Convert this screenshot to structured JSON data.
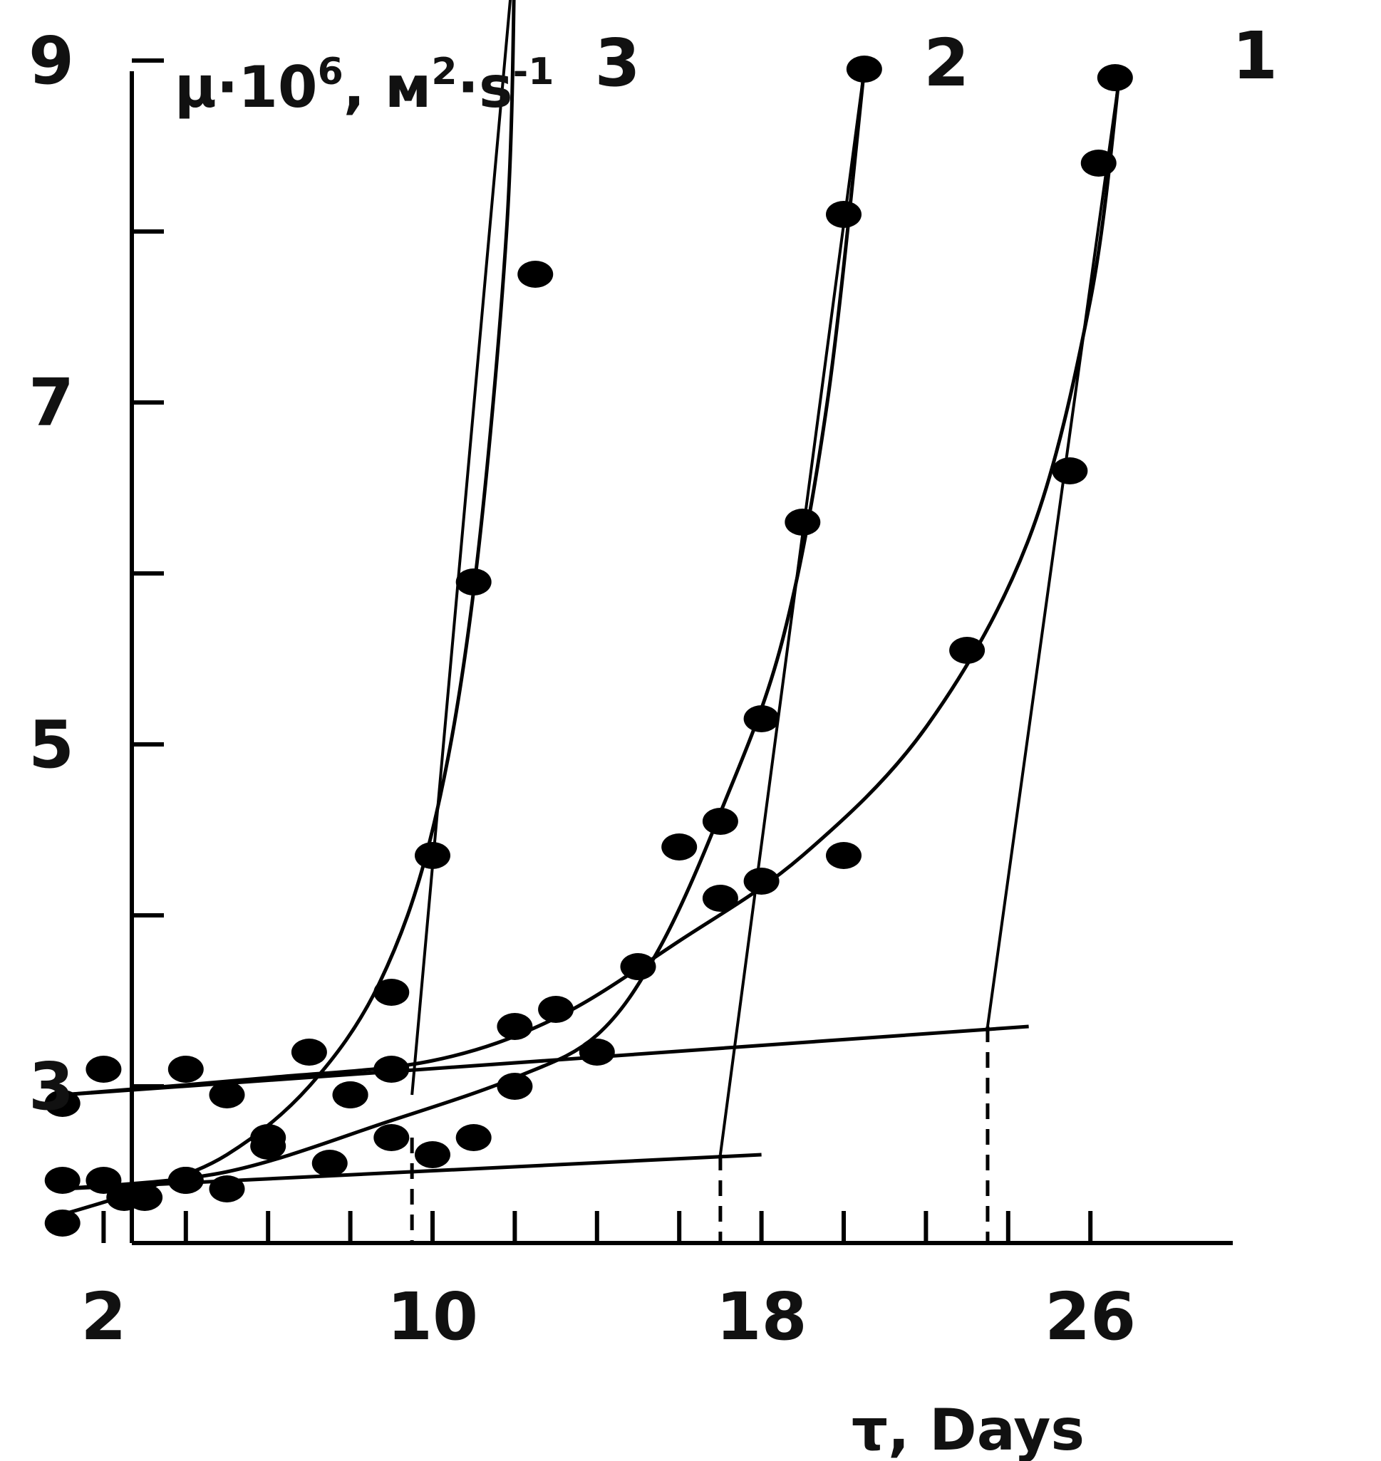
{
  "chart_data": {
    "type": "line",
    "ylabel": {
      "base": "μ·10",
      "exp1": "6",
      "mid": ", м",
      "exp2": "2",
      "unit": "·s",
      "exp3": "-1"
    },
    "xlabel": "τ, Days",
    "xlim": [
      0,
      27
    ],
    "ylim": [
      1.9,
      9.2
    ],
    "x_ticks": [
      2,
      4,
      6,
      8,
      10,
      12,
      14,
      16,
      18,
      20,
      22,
      24,
      26
    ],
    "x_tick_labels": [
      {
        "x": 2,
        "label": "2"
      },
      {
        "x": 10,
        "label": "10"
      },
      {
        "x": 18,
        "label": "18"
      },
      {
        "x": 26,
        "label": "26"
      }
    ],
    "y_ticks": [
      3,
      4,
      5,
      6,
      7,
      8,
      9
    ],
    "y_tick_labels": [
      {
        "y": 3,
        "label": "3"
      },
      {
        "y": 5,
        "label": "5"
      },
      {
        "y": 7,
        "label": "7"
      },
      {
        "y": 9,
        "label": "9"
      }
    ],
    "grid": false,
    "series": [
      {
        "name": "1",
        "points": [
          [
            1,
            2.9
          ],
          [
            2,
            3.1
          ],
          [
            4,
            3.1
          ],
          [
            5,
            2.95
          ],
          [
            7,
            3.2
          ],
          [
            8,
            2.95
          ],
          [
            9,
            3.1
          ],
          [
            12,
            3.35
          ],
          [
            13,
            3.45
          ],
          [
            15,
            3.7
          ],
          [
            17,
            4.1
          ],
          [
            18,
            4.2
          ],
          [
            20,
            4.35
          ],
          [
            23,
            5.55
          ],
          [
            25.5,
            6.6
          ],
          [
            26.2,
            8.4
          ],
          [
            26.6,
            8.9
          ]
        ],
        "curve": [
          [
            1,
            2.95
          ],
          [
            6,
            3.05
          ],
          [
            10,
            3.15
          ],
          [
            13,
            3.4
          ],
          [
            16,
            3.85
          ],
          [
            19,
            4.35
          ],
          [
            22,
            5.1
          ],
          [
            24.5,
            6.2
          ],
          [
            26,
            7.6
          ],
          [
            26.7,
            8.9
          ]
        ]
      },
      {
        "name": "2",
        "points": [
          [
            1,
            2.45
          ],
          [
            2.5,
            2.35
          ],
          [
            4,
            2.45
          ],
          [
            5,
            2.4
          ],
          [
            6,
            2.65
          ],
          [
            7.5,
            2.55
          ],
          [
            9,
            2.7
          ],
          [
            10,
            2.6
          ],
          [
            11,
            2.7
          ],
          [
            12,
            3.0
          ],
          [
            14,
            3.2
          ],
          [
            16,
            4.4
          ],
          [
            17,
            4.55
          ],
          [
            18,
            5.15
          ],
          [
            19,
            6.3
          ],
          [
            20,
            8.1
          ],
          [
            20.5,
            8.95
          ]
        ],
        "curve": [
          [
            1,
            2.4
          ],
          [
            5,
            2.5
          ],
          [
            9,
            2.8
          ],
          [
            12,
            3.05
          ],
          [
            14,
            3.3
          ],
          [
            15.5,
            3.8
          ],
          [
            17,
            4.6
          ],
          [
            18.5,
            5.6
          ],
          [
            19.6,
            7.0
          ],
          [
            20.5,
            8.95
          ]
        ]
      },
      {
        "name": "3",
        "points": [
          [
            1,
            2.2
          ],
          [
            2,
            2.45
          ],
          [
            3,
            2.35
          ],
          [
            4,
            2.45
          ],
          [
            6,
            2.7
          ],
          [
            8,
            2.95
          ],
          [
            9,
            3.55
          ],
          [
            10,
            4.35
          ],
          [
            11,
            5.95
          ],
          [
            12.5,
            7.75
          ],
          [
            12,
            9.65
          ]
        ],
        "curve": [
          [
            1,
            2.25
          ],
          [
            3,
            2.4
          ],
          [
            5,
            2.6
          ],
          [
            7,
            3.0
          ],
          [
            8.7,
            3.6
          ],
          [
            10,
            4.5
          ],
          [
            11,
            5.9
          ],
          [
            11.8,
            8.0
          ],
          [
            12,
            9.65
          ]
        ]
      }
    ],
    "baselines": [
      {
        "points": [
          [
            1,
            2.95
          ],
          [
            24.5,
            3.35
          ]
        ]
      },
      {
        "points": [
          [
            1,
            2.4
          ],
          [
            18,
            2.6
          ]
        ]
      }
    ],
    "tangents": [
      {
        "points": [
          [
            9.5,
            2.95
          ],
          [
            12,
            9.65
          ]
        ]
      },
      {
        "points": [
          [
            17,
            2.6
          ],
          [
            20.5,
            8.95
          ]
        ]
      },
      {
        "points": [
          [
            23.5,
            3.35
          ],
          [
            26.7,
            8.9
          ]
        ]
      }
    ],
    "drop_lines": [
      {
        "x": 9.5
      },
      {
        "x": 17
      },
      {
        "x": 23.5
      }
    ],
    "curve_labels": [
      {
        "text": "3",
        "x": 14.5,
        "y": 9.2
      },
      {
        "text": "2",
        "x": 22.5,
        "y": 9.2
      },
      {
        "text": "1",
        "x": 30.0,
        "y": 9.2
      }
    ]
  }
}
